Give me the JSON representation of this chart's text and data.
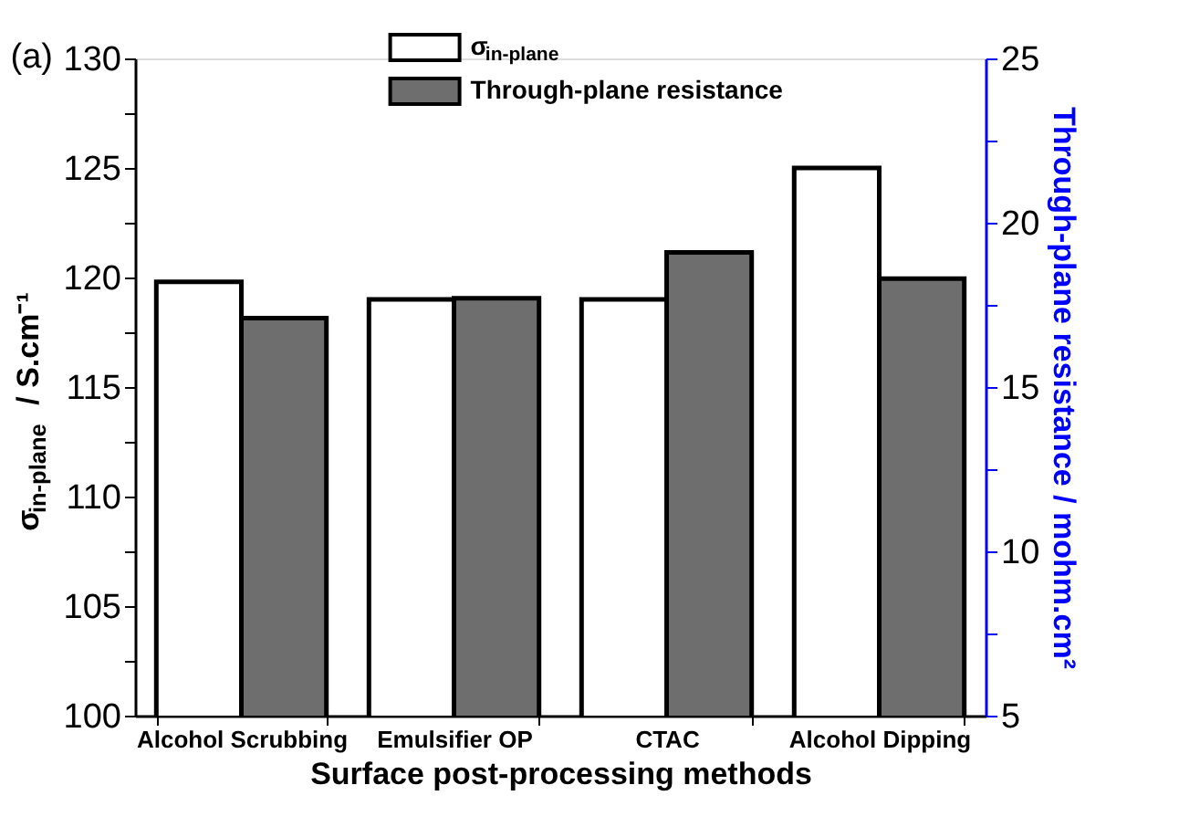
{
  "chart_data": {
    "type": "bar",
    "categories": [
      "Alcohol Scrubbing",
      "Emulsifier OP",
      "CTAC",
      "Alcohol Dipping"
    ],
    "xlabel": "Surface post-processing methods",
    "ylabel": "σ$_{in-plane}$ / S.cm⁻¹",
    "y2label": "Through-plane resistance / mohm.cm²",
    "series": [
      {
        "name": "σ$_{in-plane}$",
        "color": "#ffffff",
        "values": [
          119.8,
          119.0,
          119.0,
          125.0
        ]
      },
      {
        "name": "Through-plane resistance",
        "color": "#6e6e6e",
        "axis": "y2",
        "values": [
          17.1,
          17.7,
          19.1,
          18.3
        ]
      }
    ],
    "ylim": [
      100,
      130
    ],
    "yticks": [
      100,
      {
        "value": 102.5,
        "label": null
      },
      105,
      {
        "value": 107.5,
        "label": null
      },
      110,
      {
        "value": 112.5,
        "label": null
      },
      115,
      {
        "value": 117.5,
        "label": null
      },
      120,
      {
        "value": 122.5,
        "label": null
      },
      125,
      {
        "value": 127.5,
        "label": null
      },
      130
    ],
    "y2lim": [
      5,
      25
    ],
    "y2ticks": [
      5,
      {
        "value": 7.5,
        "label": null
      },
      10,
      {
        "value": 12.5,
        "label": null
      },
      15,
      {
        "value": 17.5,
        "label": null
      },
      20,
      {
        "value": 22.5,
        "label": null
      },
      25
    ],
    "annotations": [
      "(a)"
    ],
    "legend": "top",
    "grid": false
  }
}
